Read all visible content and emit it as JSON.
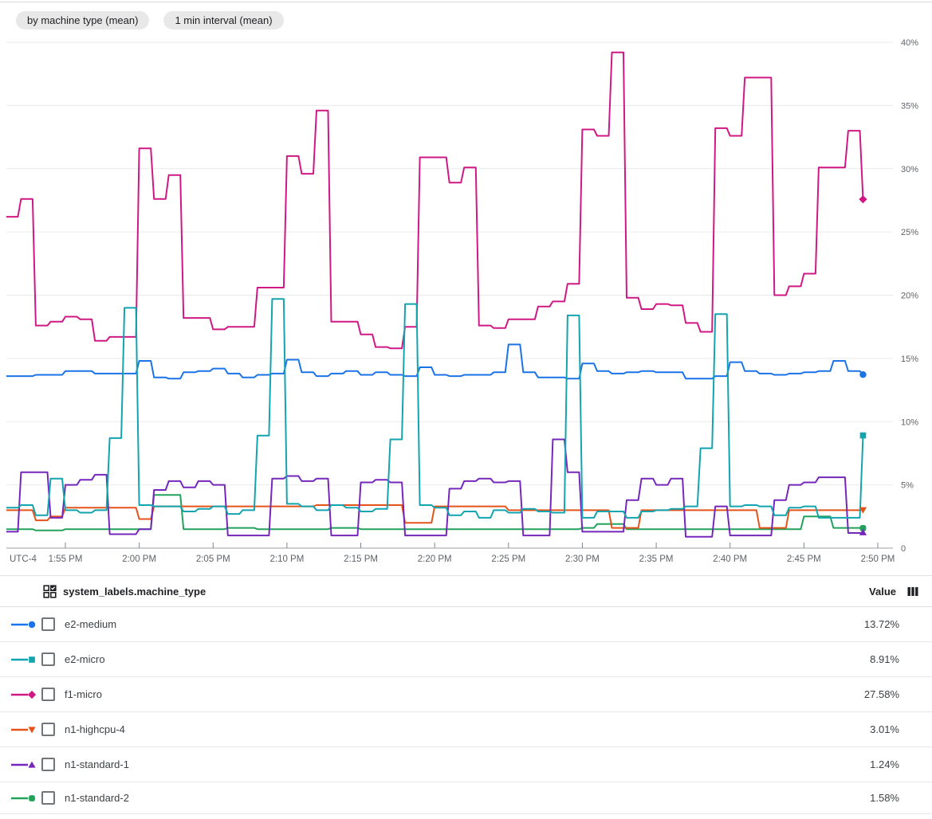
{
  "filters": [
    {
      "label": "by machine type (mean)"
    },
    {
      "label": "1 min interval (mean)"
    }
  ],
  "chart_data": {
    "type": "line",
    "step": true,
    "title": "",
    "xlabel": "",
    "ylabel": "",
    "ylim": [
      0,
      40
    ],
    "y_unit": "%",
    "grid": true,
    "legend_position": "table-below",
    "y_ticks": [
      {
        "v": 0,
        "label": "0"
      },
      {
        "v": 5,
        "label": "5%"
      },
      {
        "v": 10,
        "label": "10%"
      },
      {
        "v": 15,
        "label": "15%"
      },
      {
        "v": 20,
        "label": "20%"
      },
      {
        "v": 25,
        "label": "25%"
      },
      {
        "v": 30,
        "label": "30%"
      },
      {
        "v": 35,
        "label": "35%"
      },
      {
        "v": 40,
        "label": "40%"
      }
    ],
    "x_axis": {
      "corner_label": "UTC-4",
      "tick_labels": [
        "1:55 PM",
        "2:00 PM",
        "2:05 PM",
        "2:10 PM",
        "2:15 PM",
        "2:20 PM",
        "2:25 PM",
        "2:30 PM",
        "2:35 PM",
        "2:40 PM",
        "2:45 PM",
        "2:50 PM"
      ],
      "minutes_per_point": 1,
      "first_point_offset_minutes": -4,
      "tick_interval_minutes": 5
    },
    "series": [
      {
        "name": "e2-medium",
        "color": "#1a73e8",
        "marker": "circle",
        "final_value": "13.72%",
        "values": [
          13.6,
          13.6,
          13.7,
          13.7,
          14.0,
          14.0,
          13.8,
          13.8,
          13.8,
          14.8,
          13.5,
          13.4,
          13.9,
          14.0,
          14.2,
          13.8,
          13.5,
          13.7,
          13.8,
          14.9,
          13.9,
          13.6,
          13.8,
          14.0,
          13.7,
          13.9,
          13.7,
          13.6,
          14.3,
          13.7,
          13.6,
          13.7,
          13.7,
          13.9,
          16.1,
          13.9,
          13.5,
          13.5,
          13.4,
          14.6,
          14.0,
          13.8,
          13.9,
          14.0,
          13.9,
          13.9,
          13.4,
          13.4,
          13.6,
          14.7,
          14.0,
          13.8,
          13.7,
          13.8,
          13.9,
          14.0,
          14.8,
          14.0,
          13.72
        ]
      },
      {
        "name": "e2-micro",
        "color": "#12a4af",
        "marker": "square",
        "final_value": "8.91%",
        "values": [
          3.2,
          3.4,
          2.6,
          5.5,
          3.0,
          2.8,
          3.0,
          8.7,
          19.0,
          3.4,
          3.3,
          3.3,
          2.9,
          3.1,
          3.3,
          2.7,
          3.0,
          8.9,
          19.7,
          3.5,
          3.3,
          3.0,
          3.4,
          3.2,
          2.9,
          3.1,
          8.6,
          19.3,
          3.4,
          3.2,
          2.6,
          2.9,
          2.4,
          3.0,
          2.8,
          3.1,
          2.9,
          2.8,
          18.4,
          2.4,
          2.9,
          2.9,
          2.4,
          2.9,
          3.0,
          3.1,
          3.3,
          7.9,
          18.5,
          3.3,
          3.4,
          3.3,
          2.6,
          3.2,
          3.3,
          2.4,
          2.4,
          2.4,
          8.91
        ]
      },
      {
        "name": "f1-micro",
        "color": "#d01884",
        "marker": "diamond",
        "final_value": "27.58%",
        "values": [
          26.2,
          27.6,
          17.6,
          17.9,
          18.3,
          18.1,
          16.4,
          16.7,
          16.7,
          31.6,
          27.6,
          29.5,
          18.2,
          18.2,
          17.3,
          17.5,
          17.5,
          20.6,
          20.6,
          31.0,
          29.6,
          34.6,
          17.9,
          17.9,
          16.9,
          15.9,
          15.8,
          17.5,
          30.9,
          30.9,
          28.9,
          30.1,
          17.6,
          17.4,
          18.1,
          18.1,
          19.1,
          19.5,
          20.9,
          33.1,
          32.6,
          39.2,
          19.8,
          18.9,
          19.3,
          19.2,
          17.8,
          17.1,
          33.2,
          32.6,
          37.2,
          37.2,
          20.0,
          20.7,
          21.7,
          30.1,
          30.1,
          33.0,
          27.58
        ]
      },
      {
        "name": "n1-highcpu-4",
        "color": "#e5531b",
        "marker": "triangle-down",
        "final_value": "3.01%",
        "values": [
          3.0,
          3.0,
          2.2,
          2.5,
          3.2,
          3.2,
          3.2,
          3.2,
          3.2,
          2.3,
          3.3,
          3.3,
          3.3,
          3.3,
          3.3,
          3.3,
          3.3,
          3.3,
          3.3,
          3.3,
          3.3,
          3.4,
          3.4,
          3.4,
          3.4,
          3.4,
          3.4,
          2.0,
          2.0,
          3.3,
          3.3,
          3.3,
          3.3,
          3.3,
          3.0,
          3.0,
          3.0,
          3.0,
          3.0,
          3.0,
          3.0,
          1.6,
          1.6,
          3.0,
          3.0,
          3.0,
          3.0,
          3.0,
          3.0,
          3.0,
          3.0,
          1.6,
          1.6,
          3.0,
          3.0,
          3.0,
          3.0,
          3.0,
          3.01
        ]
      },
      {
        "name": "n1-standard-1",
        "color": "#7627bb",
        "marker": "triangle-up",
        "final_value": "1.24%",
        "values": [
          1.3,
          6.0,
          6.0,
          2.4,
          5.0,
          5.4,
          5.8,
          1.1,
          1.1,
          1.5,
          4.6,
          5.3,
          4.8,
          5.3,
          5.0,
          1.0,
          1.0,
          1.0,
          5.5,
          5.7,
          5.3,
          5.5,
          1.0,
          1.0,
          5.2,
          5.4,
          5.2,
          1.0,
          1.0,
          1.0,
          4.7,
          5.3,
          5.5,
          5.2,
          5.3,
          1.0,
          1.0,
          8.6,
          6.0,
          1.3,
          1.3,
          1.3,
          3.8,
          5.5,
          5.0,
          5.5,
          0.9,
          0.9,
          3.3,
          1.0,
          1.0,
          1.0,
          3.8,
          5.0,
          5.2,
          5.6,
          5.6,
          1.2,
          1.24
        ]
      },
      {
        "name": "n1-standard-2",
        "color": "#22a15b",
        "marker": "rounded-square",
        "final_value": "1.58%",
        "values": [
          1.5,
          1.5,
          1.4,
          1.4,
          1.5,
          1.5,
          1.5,
          1.5,
          1.5,
          1.5,
          4.2,
          4.2,
          1.5,
          1.5,
          1.5,
          1.6,
          1.6,
          1.5,
          1.5,
          1.5,
          1.5,
          1.5,
          1.6,
          1.6,
          1.5,
          1.5,
          1.5,
          1.5,
          1.5,
          1.5,
          1.5,
          1.5,
          1.5,
          1.5,
          1.5,
          1.5,
          1.5,
          1.5,
          1.5,
          1.6,
          1.9,
          1.9,
          1.5,
          1.5,
          1.5,
          1.5,
          1.5,
          1.5,
          1.5,
          1.5,
          1.5,
          1.5,
          1.5,
          1.5,
          2.5,
          2.5,
          1.6,
          1.6,
          1.58
        ]
      }
    ]
  },
  "table": {
    "header": {
      "label": "system_labels.machine_type",
      "value_label": "Value"
    },
    "rows": [
      {
        "name": "e2-medium",
        "value": "13.72%"
      },
      {
        "name": "e2-micro",
        "value": "8.91%"
      },
      {
        "name": "f1-micro",
        "value": "27.58%"
      },
      {
        "name": "n1-highcpu-4",
        "value": "3.01%"
      },
      {
        "name": "n1-standard-1",
        "value": "1.24%"
      },
      {
        "name": "n1-standard-2",
        "value": "1.58%"
      }
    ]
  }
}
